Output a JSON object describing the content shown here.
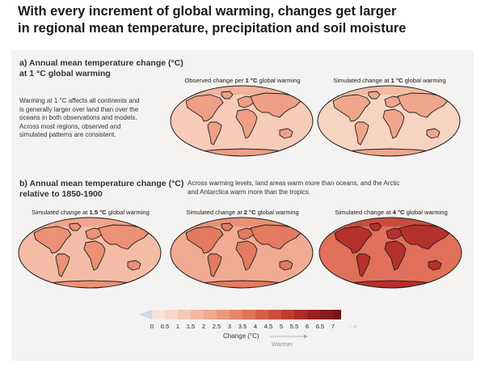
{
  "title_line1": "With every increment of global warming, changes get larger",
  "title_line2": "in regional mean temperature, precipitation and soil moisture",
  "section_a": {
    "heading_line1": "a) Annual mean temperature change (°C)",
    "heading_line2": "at 1 °C global warming",
    "note_lines": [
      "Warming at 1 °C affects all continents and",
      "is generally larger over land than over the",
      "oceans in both observations and models.",
      "Across most regions, observed and",
      "simulated patterns are consistent."
    ],
    "maps": [
      {
        "caption_pre": "Observed change per ",
        "caption_bold": "1 °C",
        "caption_post": " global warming",
        "warming_level": 1,
        "ocean_color": "#f6cbb8",
        "land_color": "#ef9f86"
      },
      {
        "caption_pre": "Simulated change at ",
        "caption_bold": "1 °C",
        "caption_post": " global warming",
        "warming_level": 1,
        "ocean_color": "#f7d3c2",
        "land_color": "#f0a68c"
      }
    ]
  },
  "section_b": {
    "heading_line1": "b) Annual mean temperature change (°C)",
    "heading_line2": "relative to 1850-1900",
    "note_line1": "Across warming levels, land areas warm more than oceans, and the Arctic",
    "note_line2": "and Antarctica warm more than the tropics.",
    "maps": [
      {
        "caption_pre": "Simulated change at ",
        "caption_bold": "1.5 °C",
        "caption_post": " global warming",
        "warming_level": 1.5,
        "ocean_color": "#f4bca6",
        "land_color": "#ec9175"
      },
      {
        "caption_pre": "Simulated change at ",
        "caption_bold": "2 °C",
        "caption_post": " global warming",
        "warming_level": 2,
        "ocean_color": "#f1ab92",
        "land_color": "#e47a5f"
      },
      {
        "caption_pre": "Simulated change at ",
        "caption_bold": "4 °C",
        "caption_post": " global warming",
        "warming_level": 4,
        "ocean_color": "#e1705a",
        "land_color": "#b6302d"
      }
    ]
  },
  "colorbar": {
    "ticks": [
      "0",
      "0.5",
      "1",
      "1.5",
      "2",
      "2.5",
      "3",
      "3.5",
      "4",
      "4.5",
      "5",
      "5.5",
      "6",
      "6.5",
      "7"
    ],
    "colors": [
      "#f8e3da",
      "#f7d6c9",
      "#f5c8b7",
      "#f3b9a4",
      "#f0a98f",
      "#ec987c",
      "#e78669",
      "#e07358",
      "#d75f48",
      "#cc4b3b",
      "#bf3a31",
      "#ae2b29",
      "#9b1f22",
      "#871a1d",
      "#741619"
    ],
    "below_zero_color": "#c9dbee",
    "label": "Change (°C)",
    "arrow_label": "Warmer",
    "overflow_glyph": "···>"
  }
}
